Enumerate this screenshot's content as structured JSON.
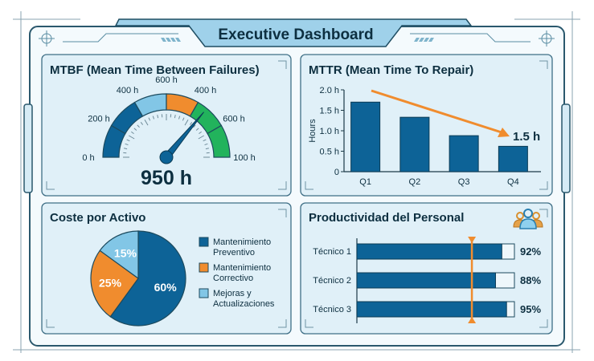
{
  "header": {
    "title": "Executive Dashboard"
  },
  "colors": {
    "dark_blue": "#0d6397",
    "light_blue": "#82c6e6",
    "orange": "#f08c2e",
    "green": "#22b35c",
    "panel": "#e0f0f8",
    "border": "#3f6f86"
  },
  "chart_data": [
    {
      "type": "gauge",
      "title": "MTBF (Mean Time Between Failures)",
      "tick_labels": [
        "0 h",
        "200 h",
        "400 h",
        "600 h",
        "400 h",
        "600 h",
        "100 h"
      ],
      "segment_colors": [
        "#0d6397",
        "#0d6397",
        "#82c6e6",
        "#f08c2e",
        "#22b35c",
        "#22b35c"
      ],
      "needle_fraction": 0.72,
      "value_label": "950 h"
    },
    {
      "type": "bar",
      "title": "MTTR (Mean Time To Repair)",
      "ylabel": "Hours",
      "categories": [
        "Q1",
        "Q2",
        "Q3",
        "Q4"
      ],
      "values": [
        1.7,
        1.33,
        0.88,
        0.62
      ],
      "yticks": [
        "0",
        "0.5 h",
        "1.0 h",
        "1.5 h",
        "2.0 h"
      ],
      "ylim": [
        0,
        2.0
      ],
      "annotation": "1.5 h",
      "trend_arrow": "decreasing"
    },
    {
      "type": "pie",
      "title": "Coste por Activo",
      "slices": [
        {
          "label": "Mantenimiento Preventivo",
          "legend_lines": [
            "Mantenimiento",
            "Preventivo"
          ],
          "value": 60,
          "text": "60%",
          "color": "#0d6397"
        },
        {
          "label": "Mantenimiento Correctivo",
          "legend_lines": [
            "Mantenimiento",
            "Correctivo"
          ],
          "value": 25,
          "text": "25%",
          "color": "#f08c2e"
        },
        {
          "label": "Mejoras y Actualizaciones",
          "legend_lines": [
            "Mejoras y",
            "Actualizaciones"
          ],
          "value": 15,
          "text": "15%",
          "color": "#82c6e6"
        }
      ],
      "legend_placement": "right"
    },
    {
      "type": "bar",
      "orientation": "horizontal",
      "title": "Productividad del Personal",
      "categories": [
        "Técnico 1",
        "Técnico 2",
        "Técnico 3"
      ],
      "values": [
        92,
        88,
        95
      ],
      "value_labels": [
        "92%",
        "88%",
        "95%"
      ],
      "xlim": [
        0,
        100
      ],
      "target_line": 73,
      "icon": "team-icon"
    }
  ]
}
